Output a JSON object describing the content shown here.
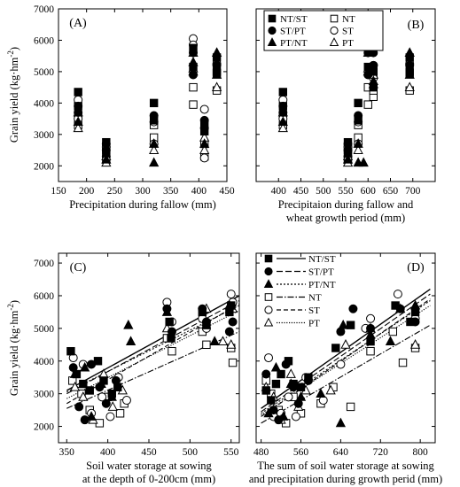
{
  "panels": [
    {
      "label": "(A)",
      "xlabel": [
        "Precipitation during fallow (mm)"
      ]
    },
    {
      "label": "(B)",
      "xlabel": [
        "Precipitaion during  fallow and",
        "wheat growth period (mm)"
      ]
    },
    {
      "label": "(C)",
      "xlabel": [
        "Soil water storage at sowing",
        "at the depth of 0-200cm (mm)"
      ]
    },
    {
      "label": "(D)",
      "xlabel": [
        "The sum of soil water storage at sowing",
        "and precipitation during growth perid (mm)"
      ]
    }
  ],
  "ylabel": "Grain yield (kg·hm",
  "ylabel_sup": "-2",
  "ylabel_end": ")",
  "legend_top": [
    {
      "name": "NT/ST",
      "marker": "filled-square"
    },
    {
      "name": "ST/PT",
      "marker": "filled-circle"
    },
    {
      "name": "PT/NT",
      "marker": "filled-triangle"
    },
    {
      "name": "NT",
      "marker": "open-square"
    },
    {
      "name": "ST",
      "marker": "open-circle"
    },
    {
      "name": "PT",
      "marker": "open-triangle"
    }
  ],
  "legend_bottom": [
    {
      "name": "NT/ST",
      "marker": "filled-square",
      "line": "solid"
    },
    {
      "name": "ST/PT",
      "marker": "filled-circle",
      "line": "dash"
    },
    {
      "name": "PT/NT",
      "marker": "filled-triangle",
      "line": "dot"
    },
    {
      "name": "NT",
      "marker": "open-square",
      "line": "dashdot"
    },
    {
      "name": "ST",
      "marker": "open-circle",
      "line": "dashlong"
    },
    {
      "name": "PT",
      "marker": "open-triangle",
      "line": "dotfine"
    }
  ],
  "chart_data": [
    {
      "type": "scatter",
      "panel": "A",
      "xlim": [
        150,
        450
      ],
      "ylim": [
        1500,
        7000
      ],
      "xticks": [
        150,
        200,
        250,
        300,
        350,
        400,
        450
      ],
      "yticks": [
        2000,
        3000,
        4000,
        5000,
        6000,
        7000
      ],
      "series": [
        {
          "name": "NT/ST",
          "x": [
            185,
            185,
            235,
            235,
            320,
            320,
            390,
            390,
            410,
            410,
            432,
            432
          ],
          "y": [
            4350,
            3900,
            2750,
            2400,
            4000,
            3450,
            5750,
            5150,
            3300,
            3100,
            5450,
            5000
          ]
        },
        {
          "name": "ST/PT",
          "x": [
            185,
            185,
            235,
            235,
            320,
            390,
            390,
            410,
            410,
            432
          ],
          "y": [
            3900,
            3700,
            2700,
            2500,
            3600,
            5600,
            4900,
            3200,
            3450,
            5200
          ]
        },
        {
          "name": "PT/NT",
          "x": [
            185,
            235,
            320,
            320,
            390,
            390,
            410,
            432,
            432
          ],
          "y": [
            3400,
            2200,
            2100,
            2700,
            5300,
            5000,
            2700,
            4900,
            5600
          ]
        },
        {
          "name": "NT",
          "x": [
            185,
            185,
            235,
            235,
            320,
            320,
            390,
            390,
            410,
            410,
            432,
            432
          ],
          "y": [
            3600,
            3300,
            2500,
            2200,
            3300,
            2900,
            4500,
            3950,
            2700,
            2300,
            4950,
            4400
          ]
        },
        {
          "name": "ST",
          "x": [
            185,
            185,
            235,
            235,
            320,
            320,
            390,
            390,
            410,
            410,
            432
          ],
          "y": [
            4100,
            3500,
            2600,
            2300,
            3400,
            2700,
            6050,
            5850,
            3800,
            2250,
            5250
          ]
        },
        {
          "name": "PT",
          "x": [
            185,
            185,
            235,
            235,
            320,
            390,
            390,
            410,
            410,
            432,
            432
          ],
          "y": [
            3200,
            3700,
            2300,
            2100,
            2500,
            5600,
            5100,
            2900,
            2500,
            4500,
            5600
          ]
        }
      ]
    },
    {
      "type": "scatter",
      "panel": "B",
      "xlim": [
        350,
        750
      ],
      "ylim": [
        1500,
        7000
      ],
      "xticks": [
        400,
        450,
        500,
        550,
        600,
        650,
        700
      ],
      "yticks": [
        2000,
        3000,
        4000,
        5000,
        6000,
        7000
      ],
      "series": [
        {
          "name": "NT/ST",
          "x": [
            410,
            410,
            555,
            555,
            578,
            578,
            600,
            600,
            612,
            612,
            693,
            693
          ],
          "y": [
            4350,
            3900,
            2750,
            2400,
            4000,
            3450,
            5750,
            5150,
            4500,
            5000,
            5450,
            5000
          ]
        },
        {
          "name": "ST/PT",
          "x": [
            410,
            410,
            555,
            555,
            578,
            600,
            600,
            612,
            612,
            693
          ],
          "y": [
            3900,
            3700,
            2700,
            2500,
            3600,
            5600,
            4900,
            5600,
            5200,
            5200
          ]
        },
        {
          "name": "PT/NT",
          "x": [
            410,
            555,
            578,
            578,
            590,
            600,
            612,
            693,
            693
          ],
          "y": [
            3400,
            2200,
            2100,
            2700,
            2100,
            5000,
            4700,
            4900,
            5600
          ]
        },
        {
          "name": "NT",
          "x": [
            410,
            410,
            555,
            555,
            578,
            578,
            600,
            600,
            612,
            612,
            693,
            693
          ],
          "y": [
            3600,
            3300,
            2500,
            2200,
            3300,
            2900,
            4500,
            3950,
            4200,
            4400,
            4950,
            4400
          ]
        },
        {
          "name": "ST",
          "x": [
            410,
            410,
            555,
            555,
            578,
            578,
            600,
            600,
            612,
            612,
            693
          ],
          "y": [
            4100,
            3500,
            2600,
            2300,
            3400,
            2700,
            6050,
            5850,
            5200,
            4800,
            5250
          ]
        },
        {
          "name": "PT",
          "x": [
            410,
            410,
            555,
            555,
            578,
            600,
            600,
            612,
            612,
            693,
            693
          ],
          "y": [
            3200,
            3700,
            2300,
            2100,
            2500,
            5600,
            5100,
            4900,
            4600,
            4500,
            5600
          ]
        }
      ]
    },
    {
      "type": "scatter",
      "panel": "C",
      "xlim": [
        340,
        560
      ],
      "ylim": [
        1500,
        7300
      ],
      "xticks": [
        350,
        400,
        450,
        500,
        550
      ],
      "yticks": [
        2000,
        3000,
        4000,
        5000,
        6000,
        7000
      ],
      "series": [
        {
          "name": "NT/ST",
          "x": [
            355,
            362,
            370,
            378,
            388,
            395,
            405,
            412,
            475,
            477,
            515,
            520,
            548,
            550
          ],
          "y": [
            4300,
            3600,
            3300,
            3100,
            4000,
            3400,
            3000,
            3200,
            5200,
            4700,
            5500,
            5100,
            5500,
            5700
          ]
        },
        {
          "name": "ST/PT",
          "x": [
            358,
            365,
            372,
            380,
            390,
            398,
            410,
            472,
            478,
            515,
            520,
            548,
            552
          ],
          "y": [
            3800,
            2600,
            2200,
            3900,
            3200,
            2700,
            3400,
            5600,
            4900,
            5600,
            5200,
            4900,
            5200
          ]
        },
        {
          "name": "PT/NT",
          "x": [
            360,
            372,
            380,
            392,
            405,
            425,
            428,
            472,
            530,
            548
          ],
          "y": [
            3600,
            3800,
            2300,
            3300,
            2900,
            5100,
            4600,
            5500,
            4600,
            5700
          ]
        },
        {
          "name": "NT",
          "x": [
            357,
            368,
            378,
            390,
            400,
            415,
            420,
            472,
            478,
            515,
            520,
            550,
            552
          ],
          "y": [
            3400,
            3000,
            2500,
            2100,
            2900,
            2400,
            2700,
            4700,
            4300,
            4900,
            4500,
            4400,
            3950
          ]
        },
        {
          "name": "ST",
          "x": [
            358,
            370,
            380,
            393,
            403,
            413,
            423,
            472,
            478,
            515,
            520,
            550,
            552
          ],
          "y": [
            4100,
            3900,
            2400,
            2900,
            2300,
            3500,
            2800,
            5800,
            5200,
            5300,
            5000,
            6050,
            5800
          ]
        },
        {
          "name": "PT",
          "x": [
            360,
            370,
            382,
            395,
            406,
            418,
            472,
            520,
            540,
            550,
            552
          ],
          "y": [
            3200,
            2900,
            2200,
            3600,
            2600,
            3100,
            5000,
            5600,
            4600,
            4500,
            5600
          ]
        }
      ],
      "fits": [
        {
          "name": "NT/ST",
          "y_at": [
            [
              350,
              3100
            ],
            [
              560,
              6000
            ]
          ]
        },
        {
          "name": "ST/PT",
          "y_at": [
            [
              350,
              3000
            ],
            [
              560,
              5850
            ]
          ]
        },
        {
          "name": "PT/NT",
          "y_at": [
            [
              350,
              3050
            ],
            [
              560,
              5700
            ]
          ]
        },
        {
          "name": "NT",
          "y_at": [
            [
              350,
              2550
            ],
            [
              560,
              4900
            ]
          ]
        },
        {
          "name": "ST",
          "y_at": [
            [
              350,
              2700
            ],
            [
              560,
              5750
            ]
          ]
        },
        {
          "name": "PT",
          "y_at": [
            [
              350,
              2850
            ],
            [
              560,
              5550
            ]
          ]
        }
      ]
    },
    {
      "type": "scatter",
      "panel": "D",
      "xlim": [
        470,
        830
      ],
      "ylim": [
        1500,
        7300
      ],
      "xticks": [
        480,
        560,
        640,
        720,
        800
      ],
      "yticks": [
        2000,
        3000,
        4000,
        5000,
        6000,
        7000
      ],
      "series": [
        {
          "name": "NT/ST",
          "x": [
            490,
            500,
            510,
            520,
            535,
            545,
            560,
            575,
            630,
            660,
            700,
            750,
            780,
            790
          ],
          "y": [
            3100,
            2800,
            3300,
            3600,
            4000,
            3300,
            3200,
            3500,
            4400,
            5100,
            4600,
            5700,
            5200,
            5500
          ]
        },
        {
          "name": "ST/PT",
          "x": [
            490,
            505,
            515,
            530,
            545,
            555,
            575,
            640,
            665,
            700,
            760,
            790
          ],
          "y": [
            3600,
            2500,
            2200,
            3900,
            3200,
            2700,
            3400,
            4900,
            5600,
            5000,
            5600,
            5200
          ]
        },
        {
          "name": "PT/NT",
          "x": [
            495,
            510,
            525,
            540,
            560,
            600,
            640,
            645,
            700,
            740,
            790
          ],
          "y": [
            2400,
            3800,
            2300,
            3300,
            2900,
            3000,
            2100,
            5100,
            4800,
            4600,
            5700
          ]
        },
        {
          "name": "NT",
          "x": [
            490,
            500,
            515,
            530,
            545,
            560,
            600,
            625,
            660,
            700,
            745,
            765,
            790
          ],
          "y": [
            3400,
            3000,
            2500,
            2100,
            2900,
            2400,
            2700,
            3200,
            2600,
            4300,
            4900,
            3950,
            4400
          ]
        },
        {
          "name": "ST",
          "x": [
            495,
            505,
            520,
            535,
            550,
            570,
            605,
            640,
            690,
            700,
            755,
            790
          ],
          "y": [
            4100,
            2300,
            2400,
            2900,
            2300,
            3500,
            2800,
            3900,
            5000,
            5300,
            6050,
            5300
          ]
        },
        {
          "name": "PT",
          "x": [
            490,
            505,
            520,
            540,
            555,
            570,
            620,
            650,
            700,
            760,
            790
          ],
          "y": [
            3200,
            2900,
            2200,
            3600,
            2600,
            3100,
            3100,
            4500,
            5000,
            5600,
            4500
          ]
        }
      ],
      "fits": [
        {
          "name": "NT/ST",
          "y_at": [
            [
              480,
              2550
            ],
            [
              820,
              6200
            ]
          ]
        },
        {
          "name": "ST/PT",
          "y_at": [
            [
              480,
              2450
            ],
            [
              820,
              6050
            ]
          ]
        },
        {
          "name": "PT/NT",
          "y_at": [
            [
              480,
              2400
            ],
            [
              820,
              5850
            ]
          ]
        },
        {
          "name": "NT",
          "y_at": [
            [
              480,
              2100
            ],
            [
              820,
              5100
            ]
          ]
        },
        {
          "name": "ST",
          "y_at": [
            [
              480,
              2300
            ],
            [
              820,
              5900
            ]
          ]
        },
        {
          "name": "PT",
          "y_at": [
            [
              480,
              2350
            ],
            [
              820,
              5700
            ]
          ]
        }
      ]
    }
  ]
}
